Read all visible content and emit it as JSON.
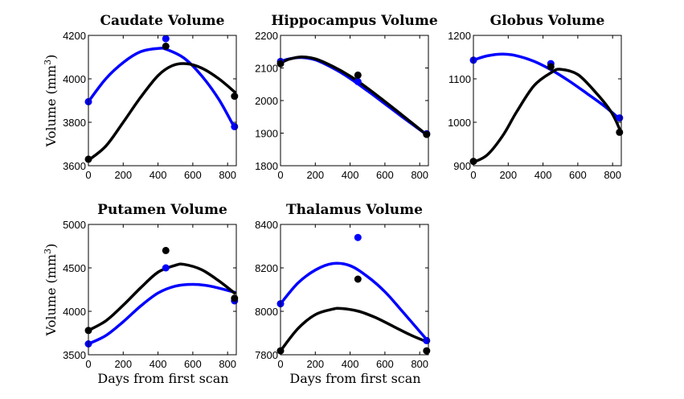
{
  "figure": {
    "ylabel_text": "Volume (mm",
    "ylabel_sup": "3",
    "ylabel_close": ")",
    "xlabel": "Days from first scan"
  },
  "colors": {
    "blue": "#0000ff",
    "black": "#000000"
  },
  "chart_data": [
    {
      "type": "line",
      "title": "Caudate Volume",
      "xlim": [
        0,
        850
      ],
      "ylim": [
        3600,
        4200
      ],
      "xticks": [
        0,
        200,
        400,
        600,
        800
      ],
      "yticks": [
        3600,
        3800,
        4000,
        4200
      ],
      "series": [
        {
          "color": "blue",
          "points": [
            [
              0,
              3895
            ],
            [
              445,
              4185
            ],
            [
              840,
              3780
            ]
          ],
          "curve": [
            [
              0,
              3895
            ],
            [
              100,
              4000
            ],
            [
              200,
              4075
            ],
            [
              300,
              4125
            ],
            [
              400,
              4140
            ],
            [
              450,
              4135
            ],
            [
              550,
              4095
            ],
            [
              650,
              4015
            ],
            [
              750,
              3905
            ],
            [
              840,
              3775
            ]
          ]
        },
        {
          "color": "black",
          "points": [
            [
              0,
              3630
            ],
            [
              445,
              4150
            ],
            [
              840,
              3920
            ]
          ],
          "curve": [
            [
              0,
              3625
            ],
            [
              100,
              3690
            ],
            [
              200,
              3800
            ],
            [
              300,
              3915
            ],
            [
              400,
              4015
            ],
            [
              480,
              4060
            ],
            [
              560,
              4070
            ],
            [
              650,
              4050
            ],
            [
              750,
              4000
            ],
            [
              840,
              3940
            ]
          ]
        }
      ]
    },
    {
      "type": "line",
      "title": "Hippocampus Volume",
      "xlim": [
        0,
        850
      ],
      "ylim": [
        1800,
        2200
      ],
      "xticks": [
        0,
        200,
        400,
        600,
        800
      ],
      "yticks": [
        1800,
        1900,
        2000,
        2100,
        2200
      ],
      "series": [
        {
          "color": "blue",
          "points": [
            [
              0,
              2120
            ],
            [
              445,
              2058
            ],
            [
              840,
              1898
            ]
          ],
          "curve": [
            [
              0,
              2120
            ],
            [
              50,
              2128
            ],
            [
              120,
              2132
            ],
            [
              200,
              2125
            ],
            [
              300,
              2100
            ],
            [
              400,
              2068
            ],
            [
              500,
              2030
            ],
            [
              600,
              1990
            ],
            [
              700,
              1950
            ],
            [
              840,
              1895
            ]
          ]
        },
        {
          "color": "black",
          "points": [
            [
              0,
              2113
            ],
            [
              445,
              2078
            ],
            [
              840,
              1896
            ]
          ],
          "curve": [
            [
              0,
              2115
            ],
            [
              50,
              2127
            ],
            [
              120,
              2134
            ],
            [
              200,
              2128
            ],
            [
              300,
              2105
            ],
            [
              400,
              2075
            ],
            [
              500,
              2038
            ],
            [
              600,
              1997
            ],
            [
              700,
              1955
            ],
            [
              840,
              1895
            ]
          ]
        }
      ]
    },
    {
      "type": "line",
      "title": "Globus Volume",
      "xlim": [
        0,
        850
      ],
      "ylim": [
        900,
        1200
      ],
      "xticks": [
        0,
        200,
        400,
        600,
        800
      ],
      "yticks": [
        900,
        1000,
        1100,
        1200
      ],
      "series": [
        {
          "color": "blue",
          "points": [
            [
              0,
              1143
            ],
            [
              445,
              1135
            ],
            [
              840,
              1010
            ]
          ],
          "curve": [
            [
              0,
              1143
            ],
            [
              80,
              1153
            ],
            [
              170,
              1157
            ],
            [
              250,
              1153
            ],
            [
              350,
              1140
            ],
            [
              450,
              1120
            ],
            [
              550,
              1095
            ],
            [
              650,
              1067
            ],
            [
              750,
              1038
            ],
            [
              840,
              1008
            ]
          ]
        },
        {
          "color": "black",
          "points": [
            [
              0,
              910
            ],
            [
              445,
              1128
            ],
            [
              840,
              977
            ]
          ],
          "curve": [
            [
              0,
              908
            ],
            [
              80,
              925
            ],
            [
              170,
              970
            ],
            [
              250,
              1025
            ],
            [
              350,
              1085
            ],
            [
              450,
              1115
            ],
            [
              500,
              1122
            ],
            [
              600,
              1110
            ],
            [
              700,
              1070
            ],
            [
              790,
              1025
            ],
            [
              840,
              985
            ]
          ]
        }
      ]
    },
    {
      "type": "line",
      "title": "Putamen Volume",
      "xlim": [
        0,
        850
      ],
      "ylim": [
        3500,
        5000
      ],
      "xticks": [
        0,
        200,
        400,
        600,
        800
      ],
      "yticks": [
        3500,
        4000,
        4500,
        5000
      ],
      "series": [
        {
          "color": "blue",
          "points": [
            [
              0,
              3625
            ],
            [
              445,
              4500
            ],
            [
              840,
              4120
            ]
          ],
          "curve": [
            [
              0,
              3625
            ],
            [
              100,
              3720
            ],
            [
              200,
              3880
            ],
            [
              300,
              4060
            ],
            [
              400,
              4210
            ],
            [
              500,
              4290
            ],
            [
              600,
              4310
            ],
            [
              700,
              4290
            ],
            [
              840,
              4220
            ]
          ]
        },
        {
          "color": "black",
          "points": [
            [
              0,
              3780
            ],
            [
              445,
              4700
            ],
            [
              840,
              4150
            ]
          ],
          "curve": [
            [
              0,
              3780
            ],
            [
              100,
              3890
            ],
            [
              200,
              4070
            ],
            [
              300,
              4270
            ],
            [
              400,
              4450
            ],
            [
              500,
              4530
            ],
            [
              550,
              4540
            ],
            [
              650,
              4480
            ],
            [
              750,
              4350
            ],
            [
              840,
              4210
            ]
          ]
        }
      ]
    },
    {
      "type": "line",
      "title": "Thalamus Volume",
      "xlim": [
        0,
        850
      ],
      "ylim": [
        7800,
        8400
      ],
      "xticks": [
        0,
        200,
        400,
        600,
        800
      ],
      "yticks": [
        7800,
        8000,
        8200,
        8400
      ],
      "series": [
        {
          "color": "blue",
          "points": [
            [
              0,
              8035
            ],
            [
              445,
              8340
            ],
            [
              840,
              7865
            ]
          ],
          "curve": [
            [
              0,
              8035
            ],
            [
              100,
              8130
            ],
            [
              200,
              8190
            ],
            [
              300,
              8220
            ],
            [
              400,
              8210
            ],
            [
              500,
              8160
            ],
            [
              600,
              8090
            ],
            [
              700,
              8000
            ],
            [
              840,
              7870
            ]
          ]
        },
        {
          "color": "black",
          "points": [
            [
              0,
              7818
            ],
            [
              445,
              8148
            ],
            [
              840,
              7818
            ]
          ],
          "curve": [
            [
              0,
              7818
            ],
            [
              100,
              7920
            ],
            [
              200,
              7985
            ],
            [
              300,
              8010
            ],
            [
              350,
              8013
            ],
            [
              450,
              8000
            ],
            [
              550,
              7970
            ],
            [
              650,
              7930
            ],
            [
              750,
              7890
            ],
            [
              840,
              7860
            ]
          ]
        }
      ]
    }
  ]
}
